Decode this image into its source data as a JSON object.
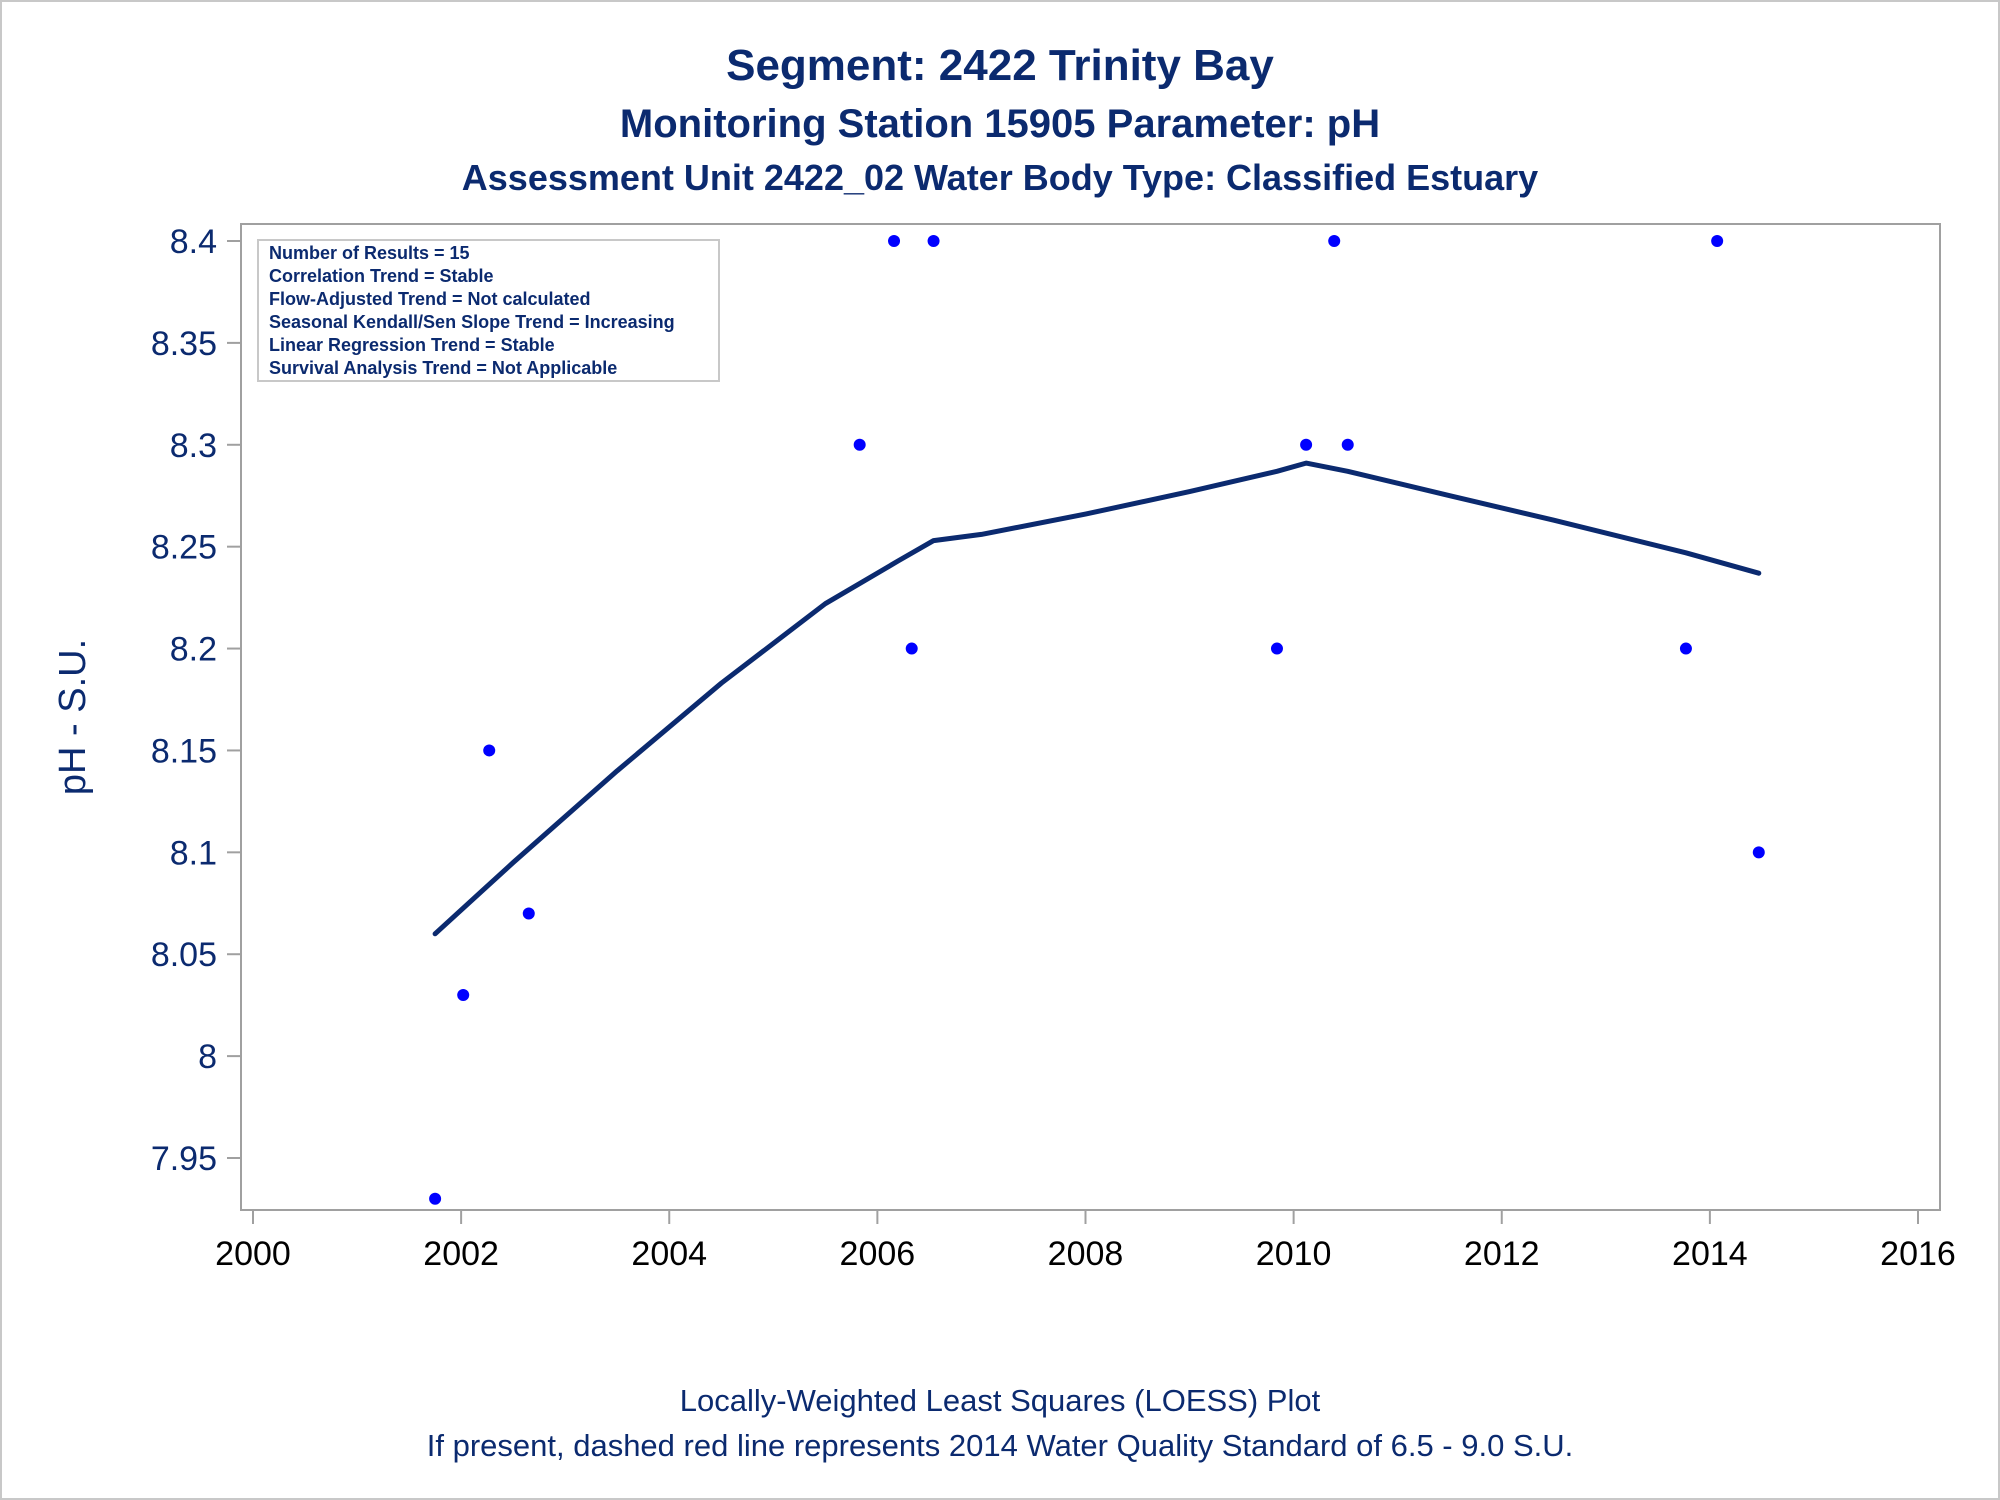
{
  "titles": {
    "line1": "Segment: 2422  Trinity Bay",
    "line2": "Monitoring Station 15905 Parameter: pH",
    "line3": "Assessment Unit 2422_02   Water Body Type: Classified Estuary"
  },
  "footnotes": {
    "line1": "Locally-Weighted Least Squares (LOESS) Plot",
    "line2": "If present, dashed red line represents 2014 Water Quality Standard of 6.5 - 9.0 S.U."
  },
  "stats": [
    "Number of Results = 15",
    "Correlation Trend = Stable",
    "Flow-Adjusted Trend = Not calculated",
    "Seasonal Kendall/Sen Slope Trend = Increasing",
    "Linear Regression Trend = Stable",
    "Survival Analysis Trend = Not Applicable"
  ],
  "colors": {
    "title": "#0b2a6f",
    "points": "#0000ff",
    "loess": "#0b2a6f",
    "axis": "#a0a0a0"
  },
  "chart_data": {
    "type": "scatter",
    "ylabel": "pH - S.U.",
    "xlim": [
      2000,
      2016
    ],
    "ylim": [
      7.925,
      8.4
    ],
    "x_ticks": [
      "2000",
      "2002",
      "2004",
      "2006",
      "2008",
      "2010",
      "2012",
      "2014",
      "2016"
    ],
    "y_ticks": [
      "7.95",
      "8",
      "8.05",
      "8.1",
      "8.15",
      "8.2",
      "8.25",
      "8.3",
      "8.35",
      "8.4"
    ],
    "points": [
      {
        "x": 2001.75,
        "y": 7.93
      },
      {
        "x": 2002.02,
        "y": 8.03
      },
      {
        "x": 2002.27,
        "y": 8.15
      },
      {
        "x": 2002.65,
        "y": 8.07
      },
      {
        "x": 2005.83,
        "y": 8.3
      },
      {
        "x": 2006.16,
        "y": 8.4
      },
      {
        "x": 2006.33,
        "y": 8.2
      },
      {
        "x": 2006.54,
        "y": 8.4
      },
      {
        "x": 2009.84,
        "y": 8.2
      },
      {
        "x": 2010.12,
        "y": 8.3
      },
      {
        "x": 2010.39,
        "y": 8.4
      },
      {
        "x": 2010.52,
        "y": 8.3
      },
      {
        "x": 2013.77,
        "y": 8.2
      },
      {
        "x": 2014.07,
        "y": 8.4
      },
      {
        "x": 2014.47,
        "y": 8.1
      }
    ],
    "loess": [
      {
        "x": 2001.75,
        "y": 8.06
      },
      {
        "x": 2002.5,
        "y": 8.095
      },
      {
        "x": 2003.5,
        "y": 8.14
      },
      {
        "x": 2004.5,
        "y": 8.183
      },
      {
        "x": 2005.5,
        "y": 8.222
      },
      {
        "x": 2006.2,
        "y": 8.243
      },
      {
        "x": 2006.54,
        "y": 8.253
      },
      {
        "x": 2007.0,
        "y": 8.256
      },
      {
        "x": 2008.0,
        "y": 8.266
      },
      {
        "x": 2009.0,
        "y": 8.277
      },
      {
        "x": 2009.84,
        "y": 8.287
      },
      {
        "x": 2010.12,
        "y": 8.291
      },
      {
        "x": 2010.52,
        "y": 8.287
      },
      {
        "x": 2011.5,
        "y": 8.275
      },
      {
        "x": 2012.5,
        "y": 8.263
      },
      {
        "x": 2013.77,
        "y": 8.247
      },
      {
        "x": 2014.47,
        "y": 8.237
      }
    ]
  }
}
